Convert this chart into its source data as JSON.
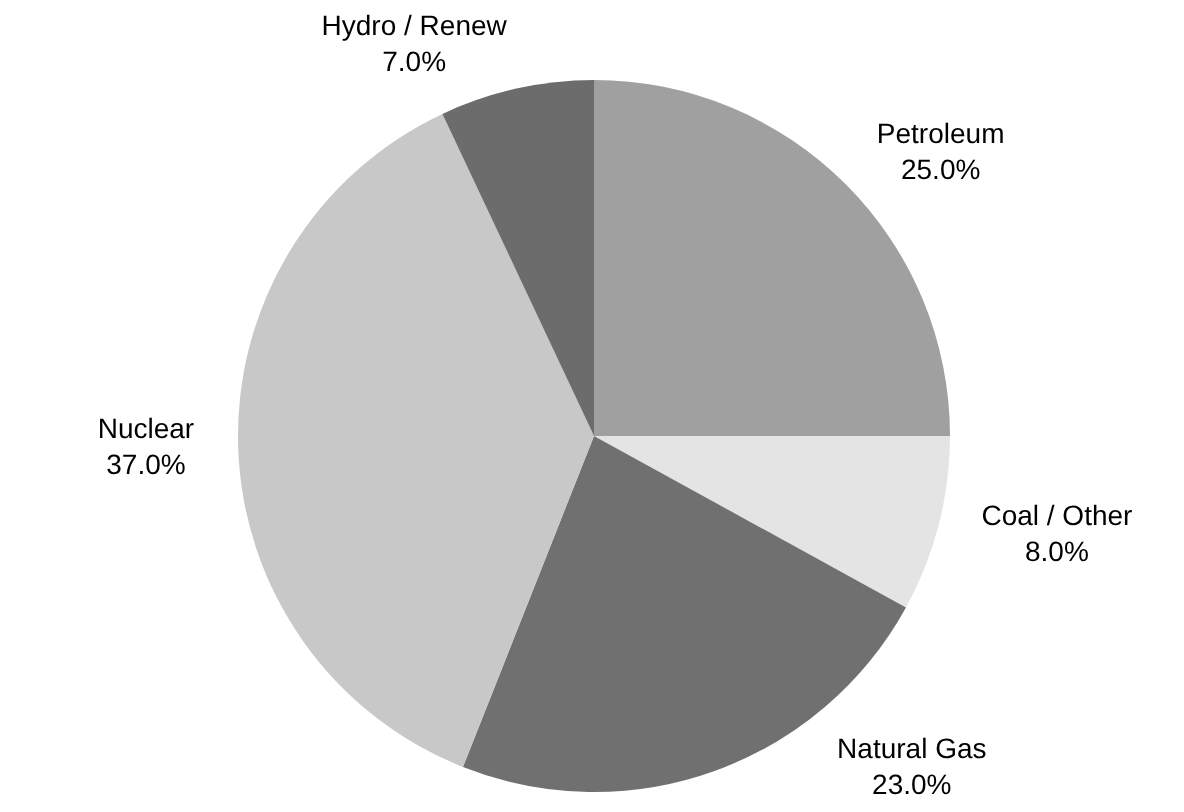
{
  "chart_data": {
    "type": "pie",
    "categories": [
      "Petroleum",
      "Coal / Other",
      "Natural Gas",
      "Nuclear",
      "Hydro / Renew"
    ],
    "values": [
      25.0,
      8.0,
      23.0,
      37.0,
      7.0
    ],
    "colors": [
      "#a0a0a0",
      "#e4e4e4",
      "#707070",
      "#c8c8c8",
      "#6c6c6c"
    ],
    "value_labels": [
      "25.0%",
      "8.0%",
      "23.0%",
      "37.0%",
      "7.0%"
    ],
    "legend": false
  }
}
